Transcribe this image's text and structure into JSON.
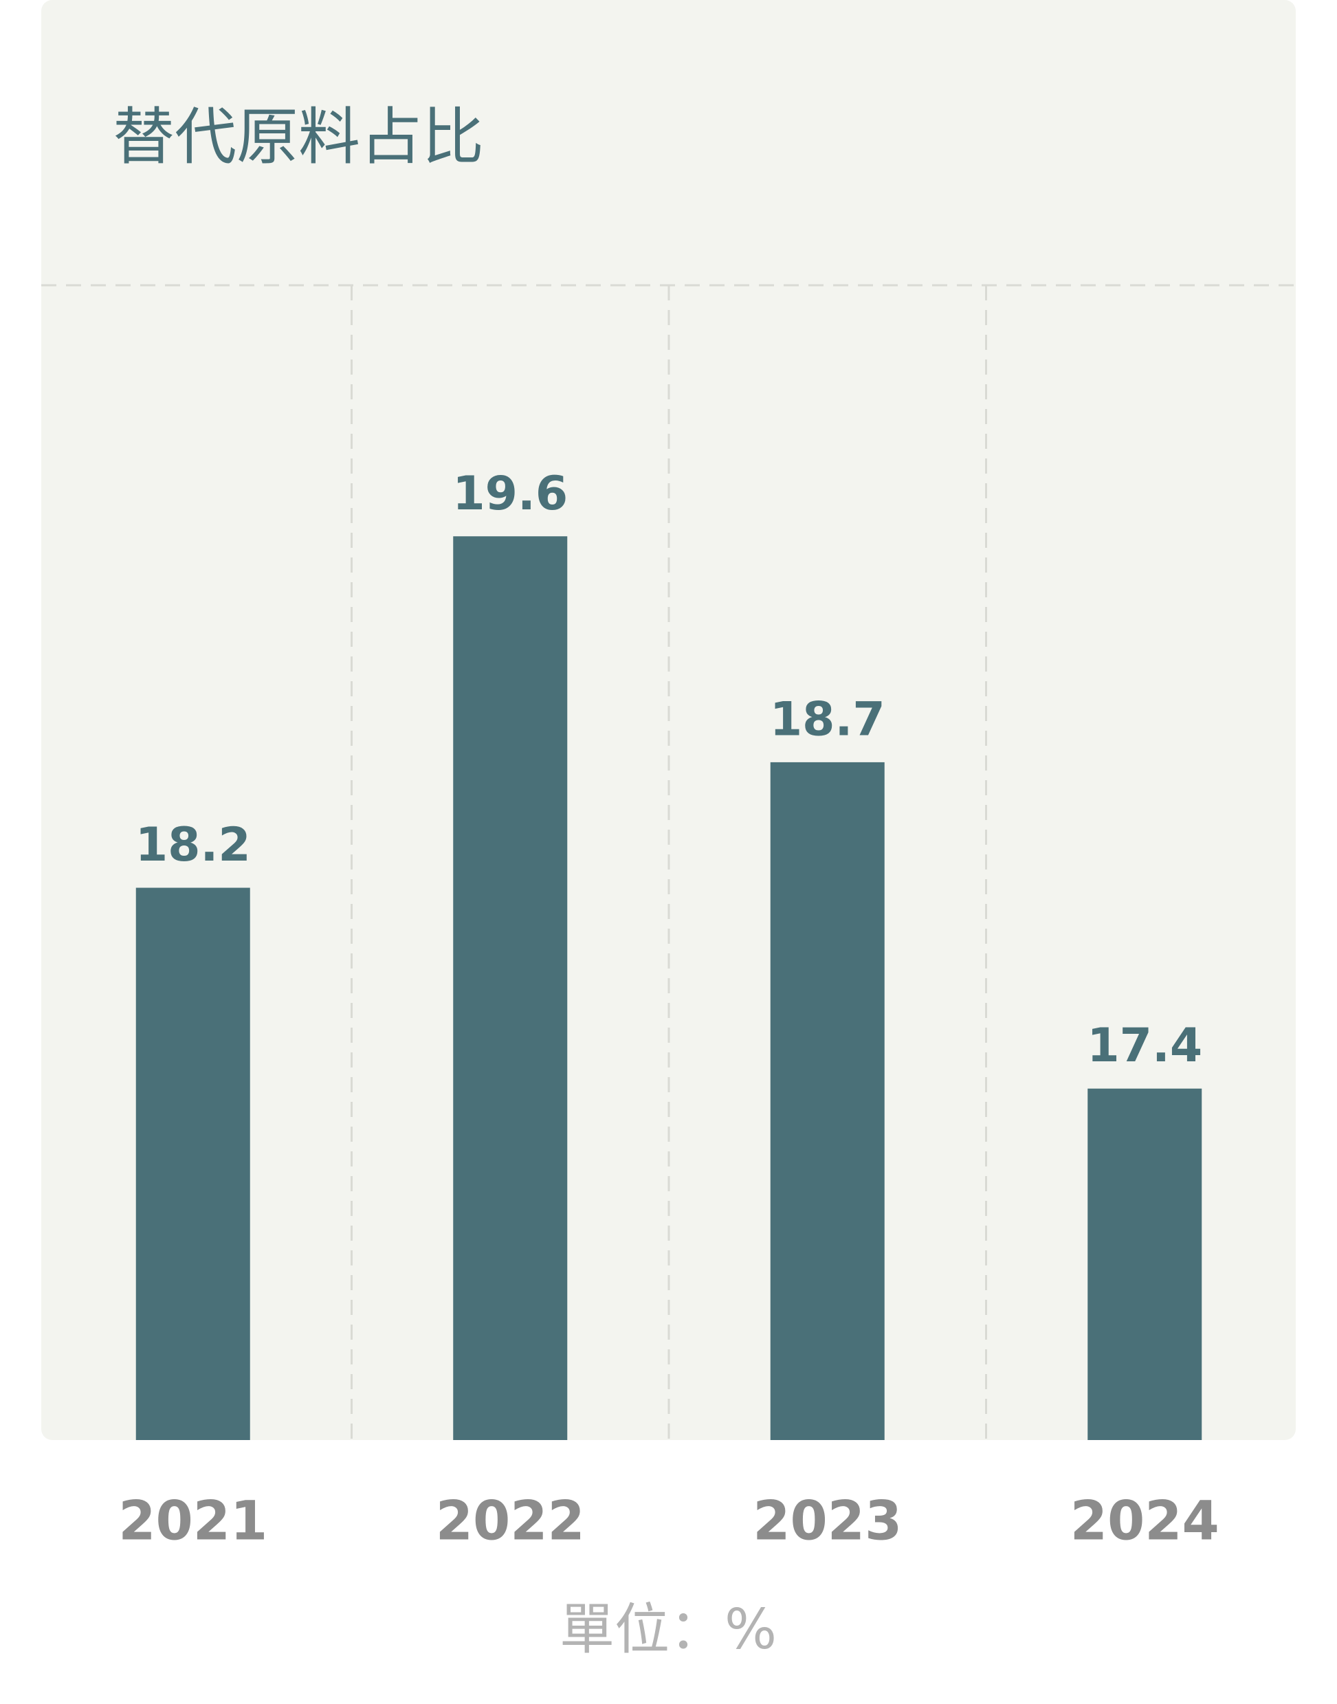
{
  "chart_data": {
    "type": "bar",
    "title": "替代原料占比",
    "unit_label": "單位：%",
    "categories": [
      "2021",
      "2022",
      "2023",
      "2024"
    ],
    "values": [
      18.2,
      19.6,
      18.7,
      17.4
    ],
    "color": "#4a7078",
    "ylim": [
      16,
      20.6
    ]
  }
}
